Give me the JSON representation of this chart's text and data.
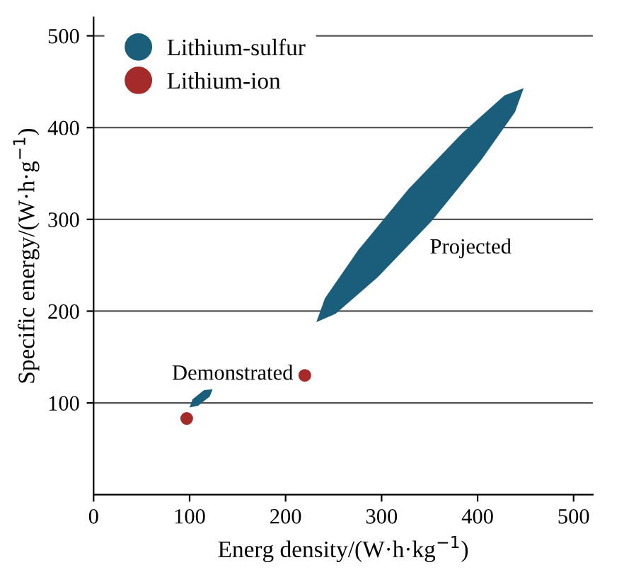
{
  "chart_data": {
    "type": "scatter",
    "xlabel": "Energ density/(W·h·kg$^{−1}$)",
    "ylabel": "Specific energy/(W·h·g$^{−1}$)",
    "xlim": [
      0,
      520
    ],
    "ylim": [
      0,
      520
    ],
    "xticks": [
      0,
      100,
      200,
      300,
      400,
      500
    ],
    "yticks": [
      100,
      200,
      300,
      400,
      500
    ],
    "grid": "y",
    "legend": "top left",
    "series": [
      {
        "name": "Lithium-sulfur",
        "type": "area",
        "color": "#1b5e7b",
        "x": [
          448,
          428,
          384,
          328,
          276,
          241,
          232,
          252,
          296,
          352,
          404,
          439
        ],
        "values": [
          443,
          435,
          394,
          333,
          267,
          214,
          188,
          197,
          237,
          298,
          365,
          417
        ]
      },
      {
        "type": "area",
        "color": "#1b5e7b",
        "x": [
          124,
          115,
          103,
          100,
          109,
          121
        ],
        "values": [
          115,
          114,
          104,
          95,
          97,
          107
        ]
      },
      {
        "name": "Lithium-ion",
        "marker": "circle",
        "color": "#a52a2a",
        "x": [
          220,
          97
        ],
        "values": [
          130,
          83
        ]
      }
    ],
    "annotations": [
      "Projected",
      "Demonstrated"
    ]
  }
}
